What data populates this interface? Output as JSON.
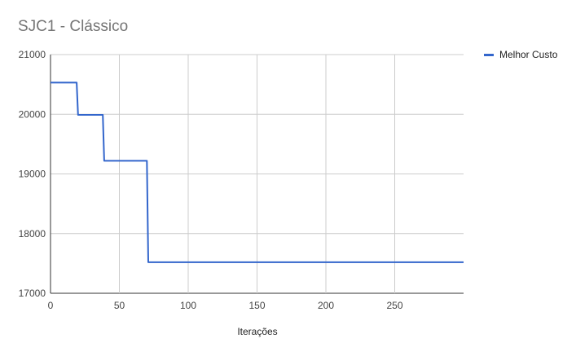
{
  "chart_data": {
    "type": "line",
    "title": "SJC1 - Clássico",
    "xlabel": "Iterações",
    "ylabel": "",
    "xlim": [
      0,
      300
    ],
    "ylim": [
      17000,
      21000
    ],
    "xticks": [
      0,
      50,
      100,
      150,
      200,
      250
    ],
    "yticks": [
      17000,
      18000,
      19000,
      20000,
      21000
    ],
    "grid": true,
    "legend_position": "right",
    "series": [
      {
        "name": "Melhor Custo",
        "color": "#3366cc",
        "x": [
          0,
          19,
          20,
          38,
          39,
          70,
          71,
          300
        ],
        "y": [
          20530,
          20530,
          19990,
          19990,
          19220,
          19220,
          17520,
          17520
        ]
      }
    ]
  }
}
